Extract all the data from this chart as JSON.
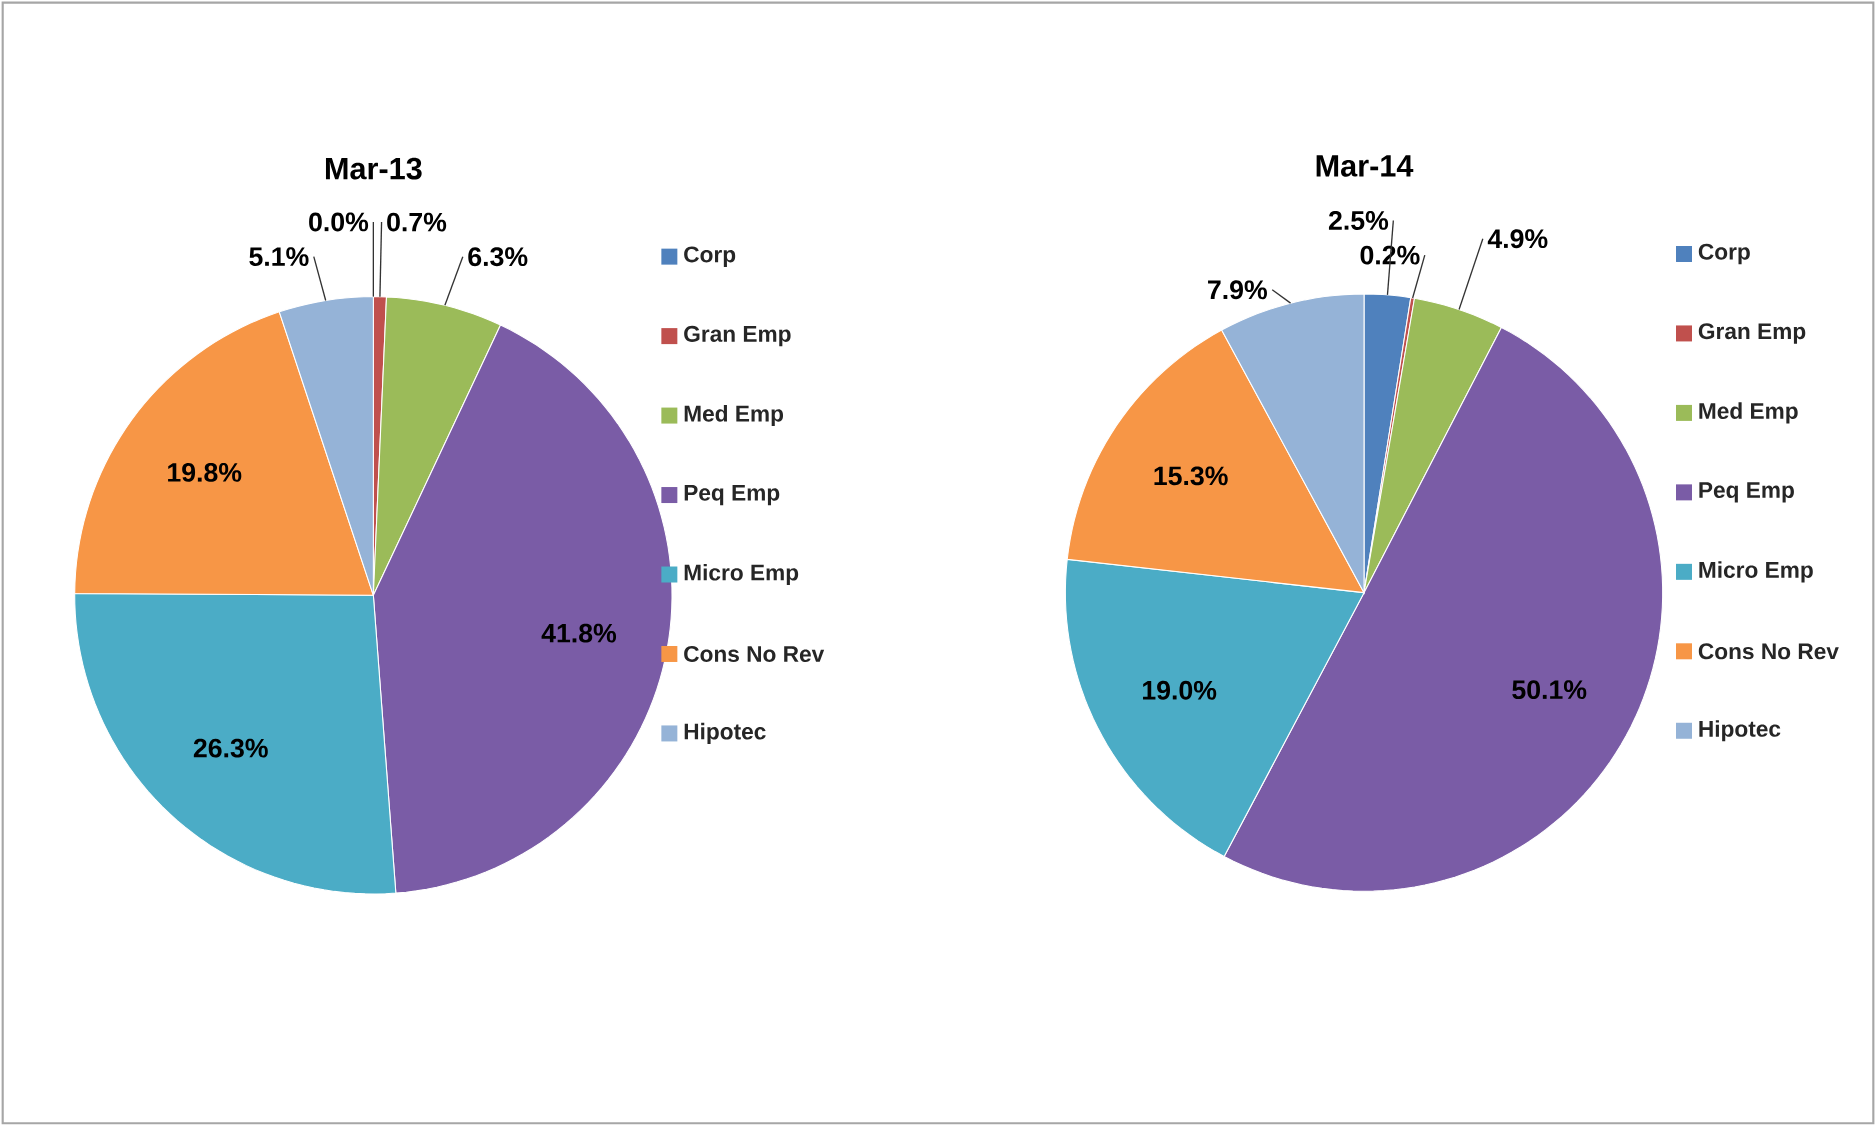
{
  "chart_data": [
    {
      "type": "pie",
      "title": "Mar-13",
      "legend": "right",
      "categories": [
        "Corp",
        "Gran Emp",
        "Med Emp",
        "Peq Emp",
        "Micro Emp",
        "Cons No Rev",
        "Hipotec"
      ],
      "values": [
        0.0,
        0.7,
        6.3,
        41.8,
        26.3,
        19.8,
        5.1
      ],
      "value_labels": [
        "0.0%",
        "0.7%",
        "6.3%",
        "41.8%",
        "26.3%",
        "19.8%",
        "5.1%"
      ],
      "colors": [
        "#4f81bd",
        "#c0504d",
        "#9bbb59",
        "#7a5ca6",
        "#4bacc6",
        "#f79646",
        "#95b3d7"
      ]
    },
    {
      "type": "pie",
      "title": "Mar-14",
      "legend": "right",
      "categories": [
        "Corp",
        "Gran Emp",
        "Med Emp",
        "Peq Emp",
        "Micro Emp",
        "Cons No Rev",
        "Hipotec"
      ],
      "values": [
        2.5,
        0.2,
        4.9,
        50.1,
        19.0,
        15.3,
        7.9
      ],
      "value_labels": [
        "2.5%",
        "0.2%",
        "4.9%",
        "50.1%",
        "19.0%",
        "15.3%",
        "7.9%"
      ],
      "colors": [
        "#4f81bd",
        "#c0504d",
        "#9bbb59",
        "#7a5ca6",
        "#4bacc6",
        "#f79646",
        "#95b3d7"
      ]
    }
  ]
}
